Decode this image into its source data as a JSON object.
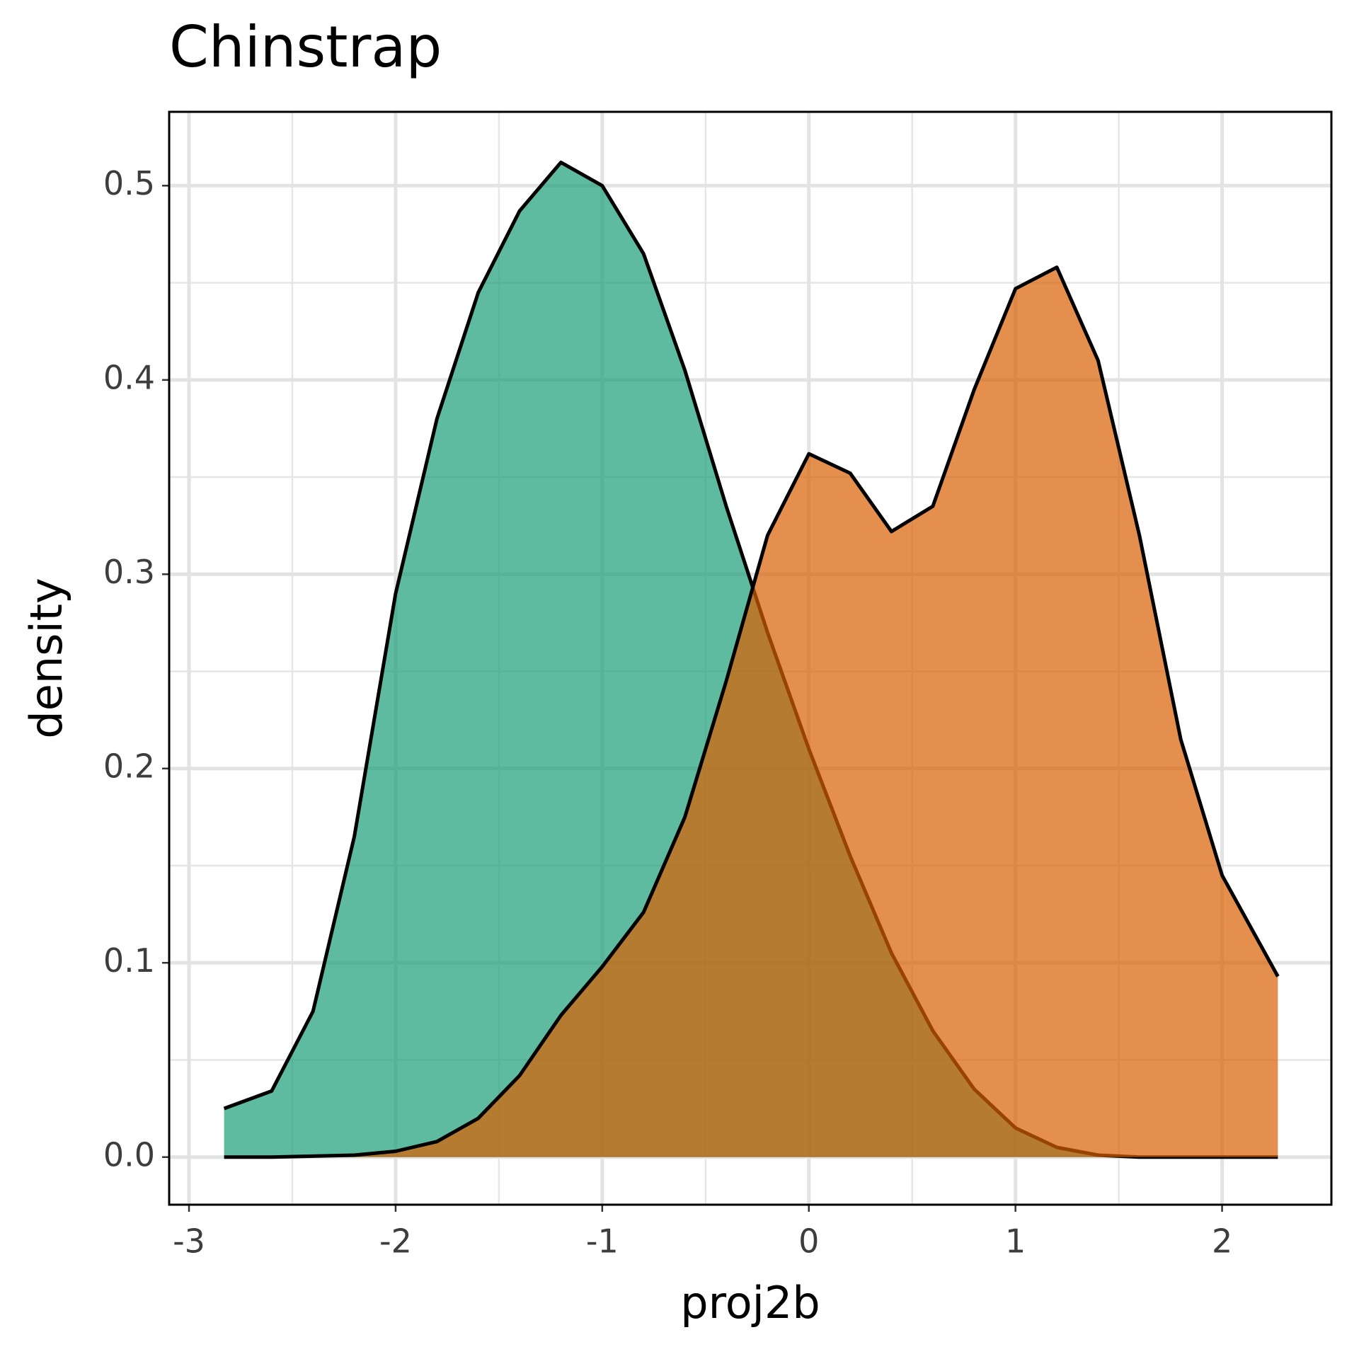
{
  "chart_data": {
    "type": "density",
    "title": "Chinstrap",
    "x_label": "proj2b",
    "y_label": "density",
    "x": [
      -2.83,
      -2.6,
      -2.4,
      -2.2,
      -2.0,
      -1.8,
      -1.6,
      -1.4,
      -1.2,
      -1.0,
      -0.8,
      -0.6,
      -0.4,
      -0.2,
      0,
      0.2,
      0.4,
      0.6,
      0.8,
      1.0,
      1.2,
      1.4,
      1.6,
      1.8,
      2.0,
      2.27
    ],
    "series": [
      {
        "color": "#1b9e77",
        "values": [
          0.025,
          0.034,
          0.075,
          0.165,
          0.29,
          0.38,
          0.445,
          0.487,
          0.512,
          0.5,
          0.465,
          0.405,
          0.335,
          0.27,
          0.21,
          0.155,
          0.105,
          0.065,
          0.035,
          0.015,
          0.005,
          0.001,
          0,
          0,
          0,
          0
        ]
      },
      {
        "color": "#d95f02",
        "values": [
          0,
          0,
          0.0005,
          0.001,
          0.003,
          0.008,
          0.02,
          0.042,
          0.073,
          0.098,
          0.126,
          0.175,
          0.245,
          0.32,
          0.362,
          0.352,
          0.322,
          0.335,
          0.395,
          0.447,
          0.458,
          0.41,
          0.32,
          0.215,
          0.145,
          0.093
        ]
      }
    ],
    "alpha": 0.7,
    "xlim": [
      -3.096,
      2.529
    ],
    "ylim": [
      -0.0245,
      0.538
    ],
    "xticks": [
      -3,
      -2,
      -1,
      0,
      1,
      2
    ],
    "yticks": [
      {
        "value": 0,
        "label": "0.0"
      },
      0.1,
      0.2,
      0.3,
      0.4,
      0.5
    ],
    "grid": true,
    "minor_grid": true
  }
}
